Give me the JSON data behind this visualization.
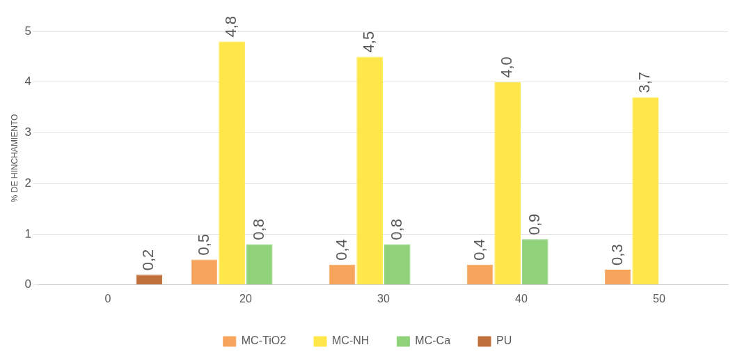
{
  "chart_data": {
    "type": "bar",
    "ylabel": "% DE HINCHAMIENTO",
    "categories": [
      "0",
      "20",
      "30",
      "40",
      "50"
    ],
    "series": [
      {
        "name": "MC-TiO2",
        "color": "#f7a45c",
        "values": [
          null,
          0.5,
          0.4,
          0.4,
          0.3
        ],
        "value_labels": [
          null,
          "0,5",
          "0,4",
          "0,4",
          "0,3"
        ]
      },
      {
        "name": "MC-NH",
        "color": "#ffe74a",
        "values": [
          null,
          4.8,
          4.5,
          4.0,
          3.7
        ],
        "value_labels": [
          null,
          "4,8",
          "4,5",
          "4,0",
          "3,7"
        ]
      },
      {
        "name": "MC-Ca",
        "color": "#8fd27a",
        "values": [
          null,
          0.8,
          0.8,
          0.9,
          null
        ],
        "value_labels": [
          null,
          "0,8",
          "0,8",
          "0,9",
          null
        ]
      },
      {
        "name": "PU",
        "color": "#c0703a",
        "values": [
          0.2,
          null,
          null,
          null,
          null
        ],
        "value_labels": [
          "0,2",
          null,
          null,
          null,
          null
        ]
      }
    ],
    "ylim": [
      0,
      5
    ],
    "yticks": [
      0,
      1,
      2,
      3,
      4,
      5
    ],
    "grid": "y",
    "legend": "bottom"
  }
}
